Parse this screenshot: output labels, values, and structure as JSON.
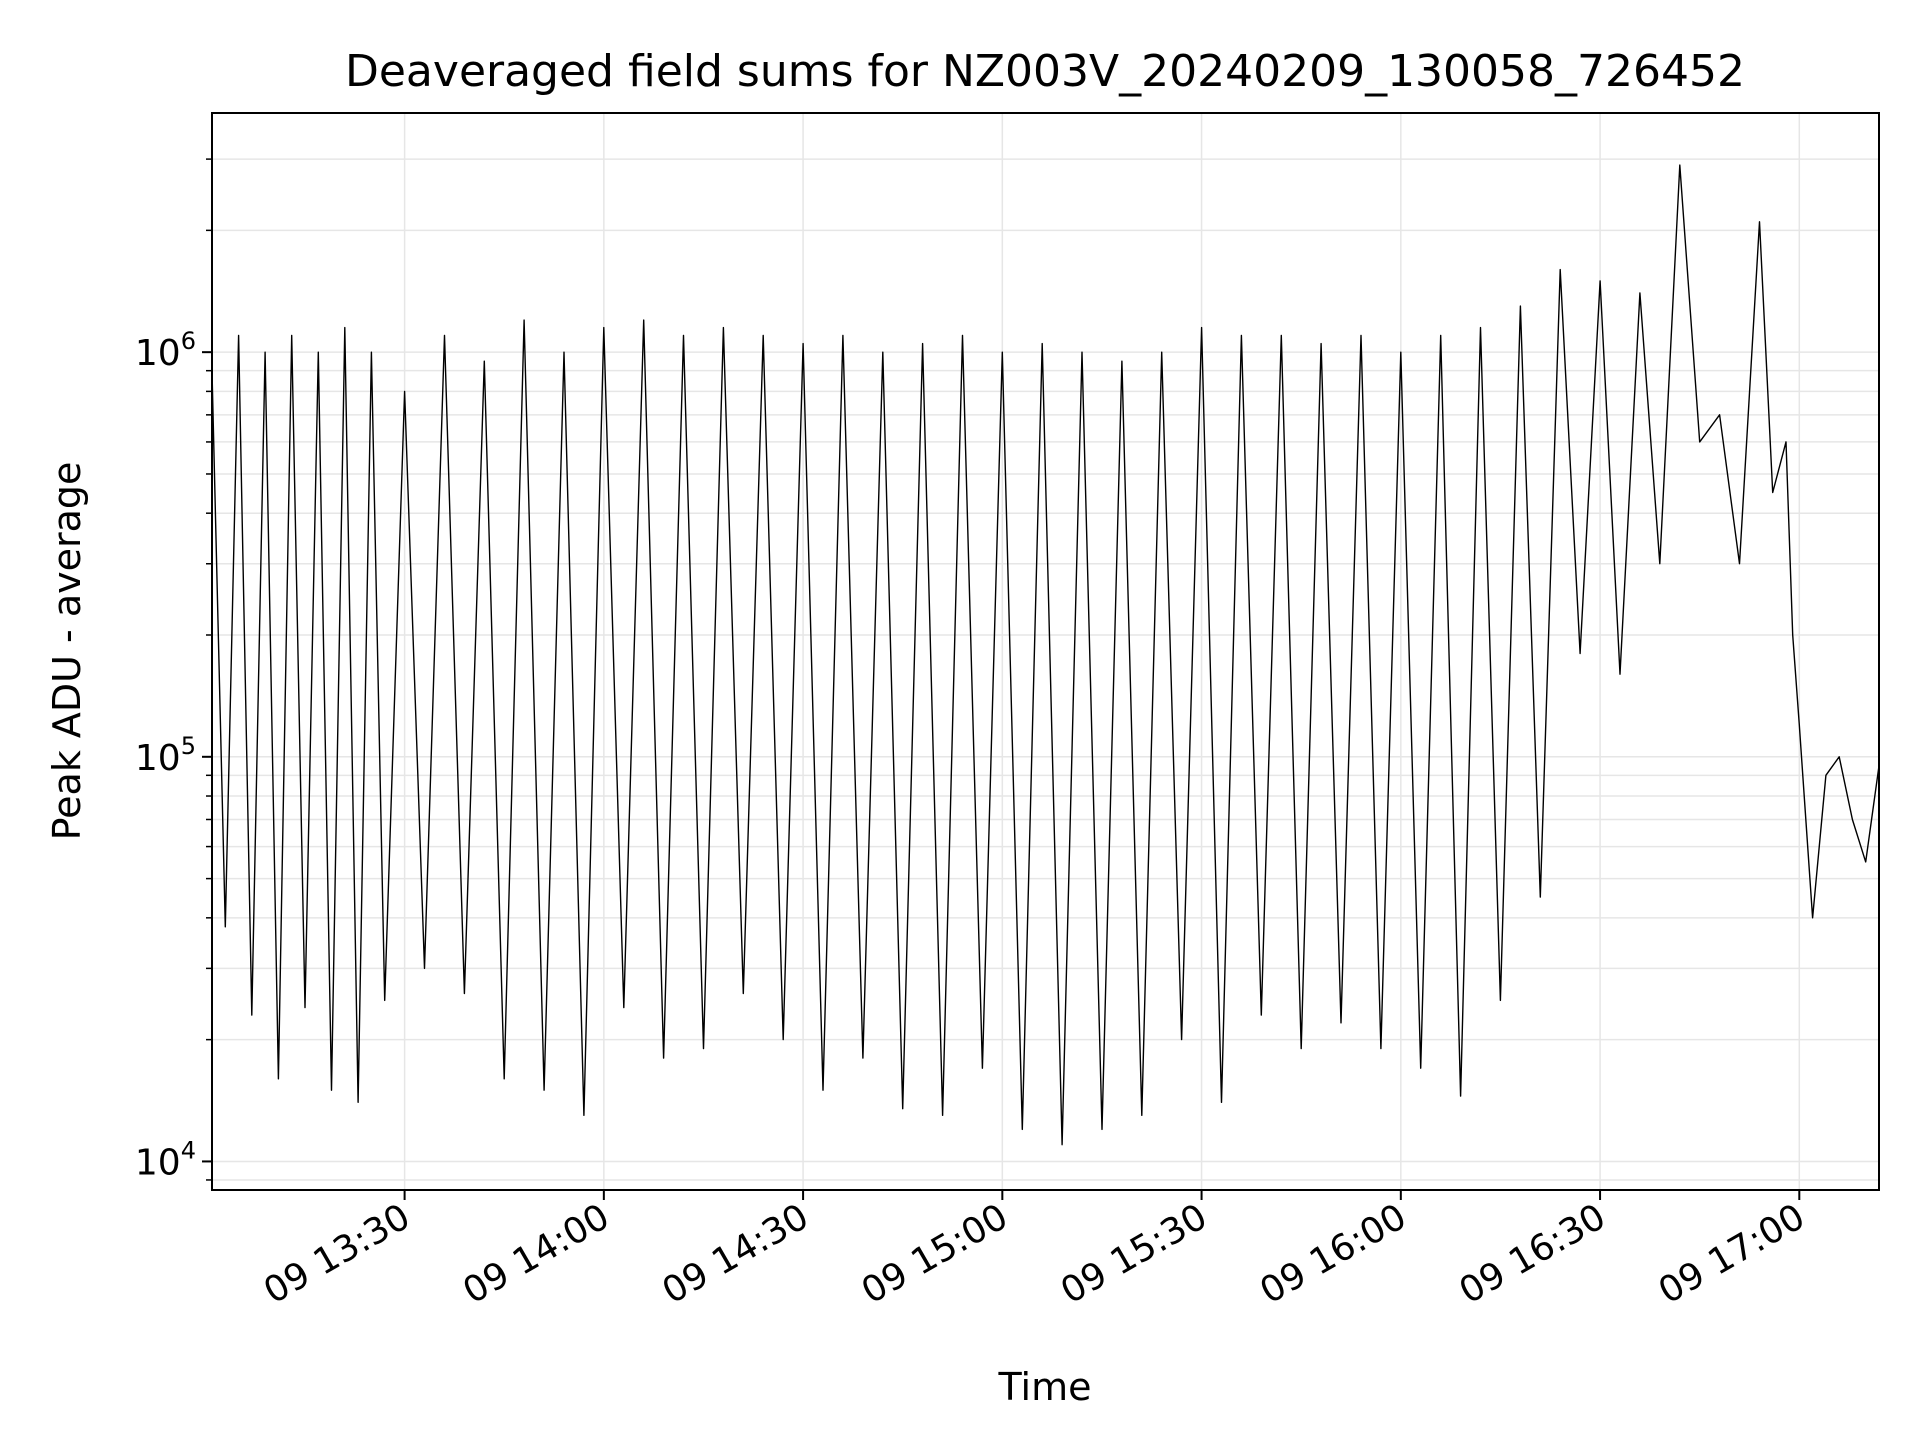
{
  "chart_data": {
    "type": "line",
    "title": "Deaveraged field sums for NZ003V_20240209_130058_726452",
    "xlabel": "Time",
    "ylabel": "Peak ADU - average",
    "yscale": "log",
    "grid": true,
    "line_color": "#000000",
    "grid_color": "#e6e6e6",
    "xlim": [
      "2024-02-09 13:01",
      "2024-02-09 17:12"
    ],
    "ylim": [
      8500,
      3900000
    ],
    "x_ticks": [
      {
        "value": "2024-02-09 13:30",
        "label": "09 13:30"
      },
      {
        "value": "2024-02-09 14:00",
        "label": "09 14:00"
      },
      {
        "value": "2024-02-09 14:30",
        "label": "09 14:30"
      },
      {
        "value": "2024-02-09 15:00",
        "label": "09 15:00"
      },
      {
        "value": "2024-02-09 15:30",
        "label": "09 15:30"
      },
      {
        "value": "2024-02-09 16:00",
        "label": "09 16:00"
      },
      {
        "value": "2024-02-09 16:30",
        "label": "09 16:30"
      },
      {
        "value": "2024-02-09 17:00",
        "label": "09 17:00"
      }
    ],
    "y_ticks": [
      {
        "value": 10000,
        "base": "10",
        "exp": "4"
      },
      {
        "value": 100000,
        "base": "10",
        "exp": "5"
      },
      {
        "value": 1000000,
        "base": "10",
        "exp": "6"
      }
    ],
    "series": [
      {
        "x": [
          "2024-02-09 13:01",
          "2024-02-09 13:03",
          "2024-02-09 13:05",
          "2024-02-09 13:07",
          "2024-02-09 13:09",
          "2024-02-09 13:11",
          "2024-02-09 13:13",
          "2024-02-09 13:15",
          "2024-02-09 13:17",
          "2024-02-09 13:19",
          "2024-02-09 13:21",
          "2024-02-09 13:23",
          "2024-02-09 13:25",
          "2024-02-09 13:27",
          "2024-02-09 13:30",
          "2024-02-09 13:33",
          "2024-02-09 13:36",
          "2024-02-09 13:39",
          "2024-02-09 13:42",
          "2024-02-09 13:45",
          "2024-02-09 13:48",
          "2024-02-09 13:51",
          "2024-02-09 13:54",
          "2024-02-09 13:57",
          "2024-02-09 14:00",
          "2024-02-09 14:03",
          "2024-02-09 14:06",
          "2024-02-09 14:09",
          "2024-02-09 14:12",
          "2024-02-09 14:15",
          "2024-02-09 14:18",
          "2024-02-09 14:21",
          "2024-02-09 14:24",
          "2024-02-09 14:27",
          "2024-02-09 14:30",
          "2024-02-09 14:33",
          "2024-02-09 14:36",
          "2024-02-09 14:39",
          "2024-02-09 14:42",
          "2024-02-09 14:45",
          "2024-02-09 14:48",
          "2024-02-09 14:51",
          "2024-02-09 14:54",
          "2024-02-09 14:57",
          "2024-02-09 15:00",
          "2024-02-09 15:03",
          "2024-02-09 15:06",
          "2024-02-09 15:09",
          "2024-02-09 15:12",
          "2024-02-09 15:15",
          "2024-02-09 15:18",
          "2024-02-09 15:21",
          "2024-02-09 15:24",
          "2024-02-09 15:27",
          "2024-02-09 15:30",
          "2024-02-09 15:33",
          "2024-02-09 15:36",
          "2024-02-09 15:39",
          "2024-02-09 15:42",
          "2024-02-09 15:45",
          "2024-02-09 15:48",
          "2024-02-09 15:51",
          "2024-02-09 15:54",
          "2024-02-09 15:57",
          "2024-02-09 16:00",
          "2024-02-09 16:03",
          "2024-02-09 16:06",
          "2024-02-09 16:09",
          "2024-02-09 16:12",
          "2024-02-09 16:15",
          "2024-02-09 16:18",
          "2024-02-09 16:21",
          "2024-02-09 16:24",
          "2024-02-09 16:27",
          "2024-02-09 16:30",
          "2024-02-09 16:33",
          "2024-02-09 16:36",
          "2024-02-09 16:39",
          "2024-02-09 16:42",
          "2024-02-09 16:45",
          "2024-02-09 16:48",
          "2024-02-09 16:51",
          "2024-02-09 16:54",
          "2024-02-09 16:56",
          "2024-02-09 16:58",
          "2024-02-09 16:59",
          "2024-02-09 17:00",
          "2024-02-09 17:02",
          "2024-02-09 17:04",
          "2024-02-09 17:06",
          "2024-02-09 17:08",
          "2024-02-09 17:10",
          "2024-02-09 17:12"
        ],
        "y": [
          900000,
          38000,
          1100000,
          23000,
          1000000,
          16000,
          1100000,
          24000,
          1000000,
          15000,
          1150000,
          14000,
          1000000,
          25000,
          800000,
          30000,
          1100000,
          26000,
          950000,
          16000,
          1200000,
          15000,
          1000000,
          13000,
          1150000,
          24000,
          1200000,
          18000,
          1100000,
          19000,
          1150000,
          26000,
          1100000,
          20000,
          1050000,
          15000,
          1100000,
          18000,
          1000000,
          13500,
          1050000,
          13000,
          1100000,
          17000,
          1000000,
          12000,
          1050000,
          11000,
          1000000,
          12000,
          950000,
          13000,
          1000000,
          20000,
          1150000,
          14000,
          1100000,
          23000,
          1100000,
          19000,
          1050000,
          22000,
          1100000,
          19000,
          1000000,
          17000,
          1100000,
          14500,
          1150000,
          25000,
          1300000,
          45000,
          1600000,
          180000,
          1500000,
          160000,
          1400000,
          300000,
          2900000,
          600000,
          700000,
          300000,
          2100000,
          450000,
          600000,
          200000,
          120000,
          40000,
          90000,
          100000,
          70000,
          55000,
          95000
        ]
      }
    ]
  }
}
